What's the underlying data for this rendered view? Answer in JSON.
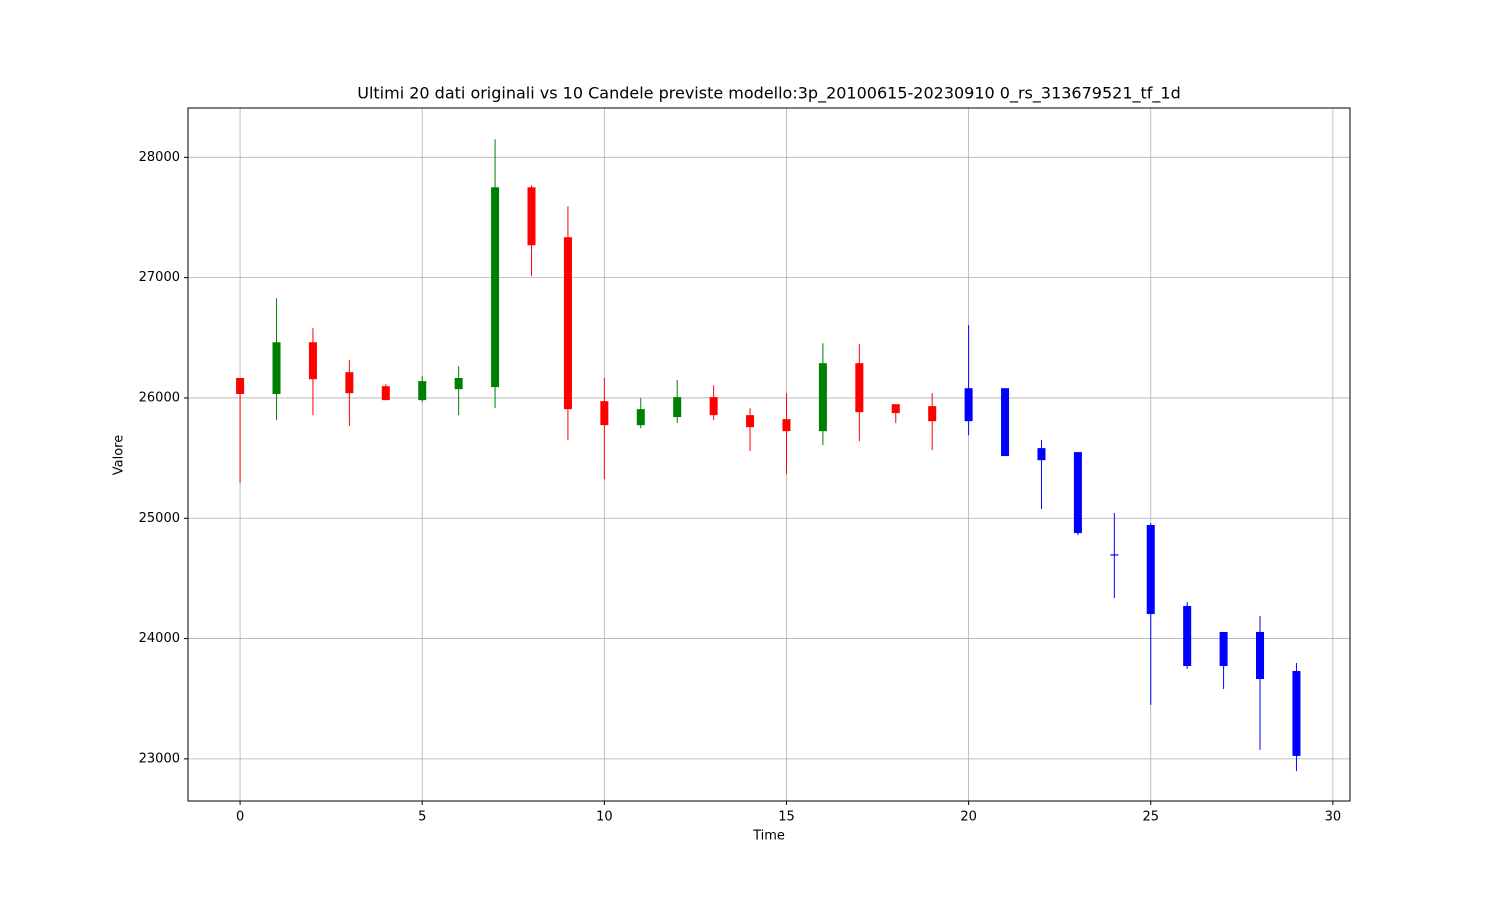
{
  "chart_data": {
    "type": "candlestick",
    "title": "Ultimi 20 dati originali vs 10 Candele previste modello:3p_20100615-20230910 0_rs_313679521_tf_1d",
    "x_label": "Time",
    "y_label": "Valore",
    "xlim": [
      -1.43,
      30.47
    ],
    "ylim": [
      22650,
      28410
    ],
    "xticks": [
      0,
      5,
      10,
      15,
      20,
      25,
      30
    ],
    "yticks": [
      23000,
      24000,
      25000,
      26000,
      27000,
      28000
    ],
    "grid": true,
    "series": [
      {
        "up_color": "green",
        "down_color": "red",
        "x": [
          0,
          1,
          2,
          3,
          4,
          5,
          6,
          7,
          8,
          9,
          10,
          11,
          12,
          13,
          14,
          15,
          16,
          17,
          18,
          19
        ],
        "open": [
          26166,
          26033,
          26463,
          26214,
          26098,
          25982,
          26073,
          26090,
          27751,
          27336,
          25973,
          25774,
          25841,
          26007,
          25857,
          25824,
          25724,
          26289,
          25948,
          25932
        ],
        "high": [
          26166,
          26829,
          26580,
          26314,
          26115,
          26181,
          26264,
          28150,
          27767,
          27593,
          26166,
          25998,
          26148,
          26106,
          25915,
          26040,
          26455,
          26447,
          25948,
          26040
        ],
        "low": [
          25292,
          25816,
          25857,
          25766,
          25982,
          25965,
          25857,
          25915,
          27012,
          25650,
          25325,
          25749,
          25791,
          25816,
          25558,
          25367,
          25608,
          25641,
          25791,
          25566
        ],
        "close": [
          26033,
          26463,
          26156,
          26040,
          25982,
          26140,
          26166,
          27751,
          27269,
          25907,
          25774,
          25907,
          26007,
          25857,
          25757,
          25724,
          26289,
          25882,
          25874,
          25807
        ]
      },
      {
        "color": "blue",
        "x": [
          20,
          21,
          22,
          23,
          24,
          25,
          26,
          27,
          28,
          29
        ],
        "open": [
          26081,
          26081,
          25583,
          25550,
          24700,
          24944,
          24271,
          24055,
          24055,
          23731
        ],
        "high": [
          26605,
          26081,
          25650,
          25550,
          25043,
          24960,
          24304,
          24055,
          24188,
          23797
        ],
        "low": [
          25691,
          25517,
          25076,
          24860,
          24337,
          23449,
          23748,
          23581,
          23075,
          22900
        ],
        "close": [
          25807,
          25517,
          25483,
          24877,
          24690,
          24204,
          23772,
          23772,
          23664,
          23025
        ]
      }
    ]
  }
}
